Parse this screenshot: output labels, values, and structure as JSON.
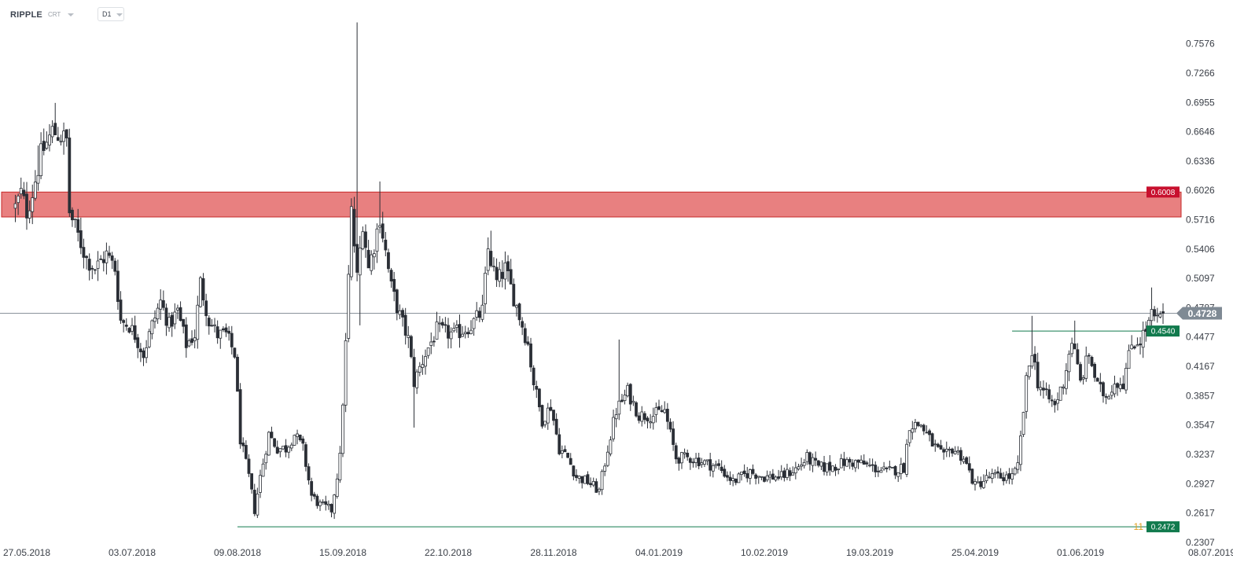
{
  "header": {
    "symbol": "RIPPLE",
    "exchange": "CRT",
    "timeframe": "D1"
  },
  "colors": {
    "candle": "#2b2f36",
    "resistance_zone_fill": "#e88080",
    "resistance_zone_border": "#c62828",
    "resistance_label": "#c8102e",
    "support_line": "#117a4d",
    "support_label": "#117a4d",
    "current_price_label": "#7f8a94",
    "counter": "#e0a020"
  },
  "chart_data": {
    "type": "candlestick",
    "ylim": [
      0.2307,
      0.79
    ],
    "y_ticks": [
      "0.7576",
      "0.7266",
      "0.6955",
      "0.6646",
      "0.6336",
      "0.6026",
      "0.5716",
      "0.5406",
      "0.5097",
      "0.4787",
      "0.4477",
      "0.4167",
      "0.3857",
      "0.3547",
      "0.3237",
      "0.2927",
      "0.2617",
      "0.2307"
    ],
    "x_ticks": [
      "27.05.2018",
      "03.07.2018",
      "09.08.2018",
      "15.09.2018",
      "22.10.2018",
      "28.11.2018",
      "04.01.2019",
      "10.02.2019",
      "19.03.2019",
      "25.04.2019",
      "01.06.2019",
      "08.07.2019"
    ],
    "current_price": {
      "value": 0.4728,
      "label": "0.4728"
    },
    "resistance_zone": {
      "from": 0.5745,
      "to": 0.6008,
      "label": "0.6008"
    },
    "support_lines": [
      {
        "value": 0.454,
        "label": "0.4540",
        "from_date": "2019-05-08"
      },
      {
        "value": 0.2472,
        "label": "0.2472",
        "from_date": "2018-08-09"
      }
    ],
    "bar_counter": "11",
    "anchors": [
      [
        "2018-05-23",
        0.585
      ],
      [
        "2018-05-25",
        0.6
      ],
      [
        "2018-05-27",
        0.58
      ],
      [
        "2018-05-29",
        0.6
      ],
      [
        "2018-06-01",
        0.64
      ],
      [
        "2018-06-05",
        0.665
      ],
      [
        "2018-06-08",
        0.66
      ],
      [
        "2018-06-10",
        0.655
      ],
      [
        "2018-06-11",
        0.58
      ],
      [
        "2018-06-14",
        0.555
      ],
      [
        "2018-06-17",
        0.53
      ],
      [
        "2018-06-20",
        0.52
      ],
      [
        "2018-06-24",
        0.535
      ],
      [
        "2018-06-27",
        0.52
      ],
      [
        "2018-06-29",
        0.465
      ],
      [
        "2018-07-02",
        0.46
      ],
      [
        "2018-07-04",
        0.45
      ],
      [
        "2018-07-07",
        0.43
      ],
      [
        "2018-07-10",
        0.46
      ],
      [
        "2018-07-13",
        0.485
      ],
      [
        "2018-07-16",
        0.46
      ],
      [
        "2018-07-19",
        0.475
      ],
      [
        "2018-07-22",
        0.44
      ],
      [
        "2018-07-25",
        0.45
      ],
      [
        "2018-07-27",
        0.505
      ],
      [
        "2018-07-30",
        0.465
      ],
      [
        "2018-08-02",
        0.45
      ],
      [
        "2018-08-05",
        0.45
      ],
      [
        "2018-08-08",
        0.43
      ],
      [
        "2018-08-10",
        0.34
      ],
      [
        "2018-08-13",
        0.3
      ],
      [
        "2018-08-15",
        0.265
      ],
      [
        "2018-08-17",
        0.3
      ],
      [
        "2018-08-20",
        0.345
      ],
      [
        "2018-08-23",
        0.33
      ],
      [
        "2018-08-26",
        0.33
      ],
      [
        "2018-08-29",
        0.345
      ],
      [
        "2018-09-01",
        0.33
      ],
      [
        "2018-09-04",
        0.28
      ],
      [
        "2018-09-07",
        0.27
      ],
      [
        "2018-09-11",
        0.265
      ],
      [
        "2018-09-14",
        0.32
      ],
      [
        "2018-09-16",
        0.44
      ],
      [
        "2018-09-18",
        0.58
      ],
      [
        "2018-09-20",
        0.51
      ],
      [
        "2018-09-22",
        0.57
      ],
      [
        "2018-09-24",
        0.52
      ],
      [
        "2018-09-26",
        0.545
      ],
      [
        "2018-09-28",
        0.575
      ],
      [
        "2018-10-02",
        0.5
      ],
      [
        "2018-10-05",
        0.47
      ],
      [
        "2018-10-08",
        0.445
      ],
      [
        "2018-10-10",
        0.4
      ],
      [
        "2018-10-14",
        0.43
      ],
      [
        "2018-10-18",
        0.455
      ],
      [
        "2018-10-24",
        0.45
      ],
      [
        "2018-10-30",
        0.46
      ],
      [
        "2018-11-03",
        0.475
      ],
      [
        "2018-11-05",
        0.54
      ],
      [
        "2018-11-08",
        0.505
      ],
      [
        "2018-11-11",
        0.52
      ],
      [
        "2018-11-14",
        0.49
      ],
      [
        "2018-11-17",
        0.46
      ],
      [
        "2018-11-19",
        0.44
      ],
      [
        "2018-11-21",
        0.4
      ],
      [
        "2018-11-24",
        0.36
      ],
      [
        "2018-11-27",
        0.375
      ],
      [
        "2018-11-30",
        0.33
      ],
      [
        "2018-12-03",
        0.32
      ],
      [
        "2018-12-06",
        0.3
      ],
      [
        "2018-12-10",
        0.295
      ],
      [
        "2018-12-14",
        0.285
      ],
      [
        "2018-12-17",
        0.33
      ],
      [
        "2018-12-20",
        0.37
      ],
      [
        "2018-12-24",
        0.39
      ],
      [
        "2018-12-28",
        0.365
      ],
      [
        "2019-01-02",
        0.365
      ],
      [
        "2019-01-06",
        0.37
      ],
      [
        "2019-01-10",
        0.32
      ],
      [
        "2019-01-15",
        0.32
      ],
      [
        "2019-01-20",
        0.315
      ],
      [
        "2019-01-25",
        0.31
      ],
      [
        "2019-01-30",
        0.295
      ],
      [
        "2019-02-05",
        0.305
      ],
      [
        "2019-02-10",
        0.3
      ],
      [
        "2019-02-16",
        0.3
      ],
      [
        "2019-02-22",
        0.31
      ],
      [
        "2019-02-25",
        0.32
      ],
      [
        "2019-03-01",
        0.31
      ],
      [
        "2019-03-05",
        0.31
      ],
      [
        "2019-03-10",
        0.315
      ],
      [
        "2019-03-15",
        0.315
      ],
      [
        "2019-03-20",
        0.31
      ],
      [
        "2019-03-25",
        0.305
      ],
      [
        "2019-03-31",
        0.31
      ],
      [
        "2019-04-02",
        0.355
      ],
      [
        "2019-04-06",
        0.355
      ],
      [
        "2019-04-10",
        0.335
      ],
      [
        "2019-04-14",
        0.32
      ],
      [
        "2019-04-17",
        0.33
      ],
      [
        "2019-04-21",
        0.32
      ],
      [
        "2019-04-25",
        0.29
      ],
      [
        "2019-04-30",
        0.3
      ],
      [
        "2019-05-05",
        0.3
      ],
      [
        "2019-05-08",
        0.3
      ],
      [
        "2019-05-10",
        0.31
      ],
      [
        "2019-05-13",
        0.4
      ],
      [
        "2019-05-15",
        0.435
      ],
      [
        "2019-05-17",
        0.4
      ],
      [
        "2019-05-20",
        0.385
      ],
      [
        "2019-05-23",
        0.375
      ],
      [
        "2019-05-26",
        0.4
      ],
      [
        "2019-05-29",
        0.445
      ],
      [
        "2019-06-01",
        0.4
      ],
      [
        "2019-06-04",
        0.43
      ],
      [
        "2019-06-07",
        0.395
      ],
      [
        "2019-06-10",
        0.385
      ],
      [
        "2019-06-13",
        0.4
      ],
      [
        "2019-06-16",
        0.4
      ],
      [
        "2019-06-19",
        0.44
      ],
      [
        "2019-06-22",
        0.445
      ],
      [
        "2019-06-24",
        0.455
      ],
      [
        "2019-06-26",
        0.47
      ],
      [
        "2019-06-28",
        0.465
      ],
      [
        "2019-06-30",
        0.4728
      ]
    ],
    "spikes": [
      {
        "date": "2018-05-31",
        "high": 0.65
      },
      {
        "date": "2018-06-06",
        "high": 0.695
      },
      {
        "date": "2018-09-20",
        "high": 0.78
      },
      {
        "date": "2018-09-21",
        "low": 0.46
      },
      {
        "date": "2018-09-28",
        "high": 0.612
      },
      {
        "date": "2018-10-10",
        "low": 0.352
      },
      {
        "date": "2018-11-06",
        "high": 0.56
      },
      {
        "date": "2018-12-21",
        "high": 0.445
      },
      {
        "date": "2019-05-15",
        "high": 0.47
      },
      {
        "date": "2019-05-30",
        "high": 0.465
      },
      {
        "date": "2019-06-26",
        "high": 0.5
      }
    ]
  }
}
